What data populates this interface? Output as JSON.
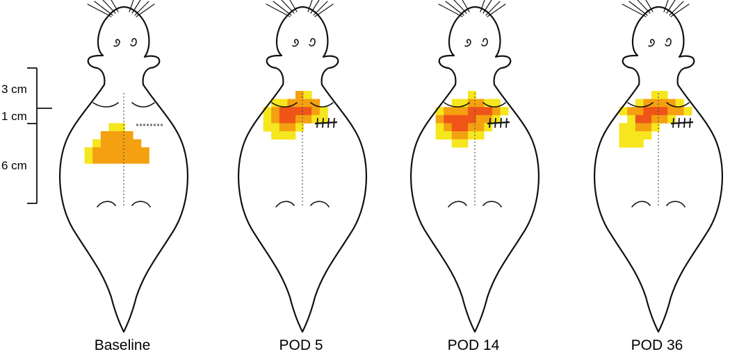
{
  "figure": {
    "scale_bar": {
      "labels": [
        "3 cm",
        "1 cm",
        "6 cm"
      ]
    },
    "colors": {
      "low": "#f5e61e",
      "medium": "#f4a010",
      "high": "#ef5418",
      "outline": "#111111"
    },
    "panels": [
      {
        "label": "Baseline",
        "has_incision": false,
        "has_dashed_mark": true,
        "heatmap": [
          [
            0,
            0,
            0,
            0,
            0,
            0,
            0,
            0,
            0,
            0
          ],
          [
            0,
            0,
            0,
            0,
            0,
            0,
            0,
            0,
            0,
            0
          ],
          [
            0,
            0,
            0,
            0,
            0,
            0,
            0,
            0,
            0,
            0
          ],
          [
            0,
            0,
            0,
            0,
            0,
            0,
            0,
            0,
            0,
            0
          ],
          [
            0,
            0,
            0,
            0,
            1,
            1,
            0,
            0,
            0,
            0
          ],
          [
            0,
            0,
            0,
            2,
            2,
            2,
            2,
            0,
            0,
            0
          ],
          [
            0,
            0,
            1,
            2,
            2,
            2,
            2,
            2,
            0,
            0
          ],
          [
            0,
            1,
            2,
            2,
            2,
            2,
            2,
            2,
            2,
            0
          ],
          [
            0,
            1,
            2,
            2,
            2,
            2,
            2,
            2,
            2,
            0
          ]
        ]
      },
      {
        "label": "POD 5",
        "has_incision": true,
        "has_dashed_mark": false,
        "heatmap": [
          [
            0,
            0,
            0,
            0,
            0,
            2,
            1,
            0,
            0,
            0
          ],
          [
            0,
            0,
            1,
            1,
            2,
            2,
            2,
            2,
            0,
            0
          ],
          [
            0,
            1,
            2,
            3,
            3,
            3,
            3,
            2,
            1,
            0
          ],
          [
            0,
            1,
            2,
            3,
            3,
            2,
            2,
            1,
            1,
            0
          ],
          [
            0,
            1,
            1,
            2,
            2,
            1,
            0,
            0,
            0,
            0
          ],
          [
            0,
            0,
            1,
            1,
            1,
            0,
            0,
            0,
            0,
            0
          ],
          [
            0,
            0,
            0,
            0,
            0,
            0,
            0,
            0,
            0,
            0
          ],
          [
            0,
            0,
            0,
            0,
            0,
            0,
            0,
            0,
            0,
            0
          ],
          [
            0,
            0,
            0,
            0,
            0,
            0,
            0,
            0,
            0,
            0
          ]
        ]
      },
      {
        "label": "POD 14",
        "has_incision": true,
        "has_dashed_mark": false,
        "heatmap": [
          [
            0,
            0,
            0,
            0,
            0,
            1,
            0,
            0,
            0,
            0
          ],
          [
            0,
            0,
            0,
            1,
            1,
            2,
            2,
            1,
            1,
            0
          ],
          [
            0,
            1,
            2,
            2,
            2,
            3,
            3,
            3,
            2,
            1
          ],
          [
            0,
            2,
            3,
            3,
            3,
            3,
            2,
            2,
            1,
            0
          ],
          [
            0,
            1,
            2,
            3,
            3,
            2,
            2,
            1,
            0,
            0
          ],
          [
            0,
            1,
            1,
            2,
            2,
            1,
            1,
            0,
            0,
            0
          ],
          [
            0,
            0,
            0,
            1,
            1,
            0,
            0,
            0,
            0,
            0
          ],
          [
            0,
            0,
            0,
            0,
            0,
            0,
            0,
            0,
            0,
            0
          ],
          [
            0,
            0,
            0,
            0,
            0,
            0,
            0,
            0,
            0,
            0
          ]
        ]
      },
      {
        "label": "POD 36",
        "has_incision": true,
        "has_dashed_mark": false,
        "heatmap": [
          [
            0,
            0,
            0,
            0,
            0,
            1,
            1,
            0,
            0,
            0
          ],
          [
            0,
            0,
            0,
            1,
            2,
            2,
            2,
            2,
            1,
            0
          ],
          [
            0,
            1,
            2,
            2,
            3,
            3,
            3,
            2,
            2,
            1
          ],
          [
            0,
            0,
            1,
            3,
            3,
            2,
            2,
            1,
            0,
            0
          ],
          [
            0,
            1,
            1,
            2,
            2,
            1,
            0,
            0,
            0,
            0
          ],
          [
            0,
            1,
            1,
            1,
            1,
            0,
            0,
            0,
            0,
            0
          ],
          [
            0,
            1,
            1,
            1,
            0,
            0,
            0,
            0,
            0,
            0
          ],
          [
            0,
            0,
            0,
            0,
            0,
            0,
            0,
            0,
            0,
            0
          ],
          [
            0,
            0,
            0,
            0,
            0,
            0,
            0,
            0,
            0,
            0
          ]
        ]
      }
    ]
  }
}
